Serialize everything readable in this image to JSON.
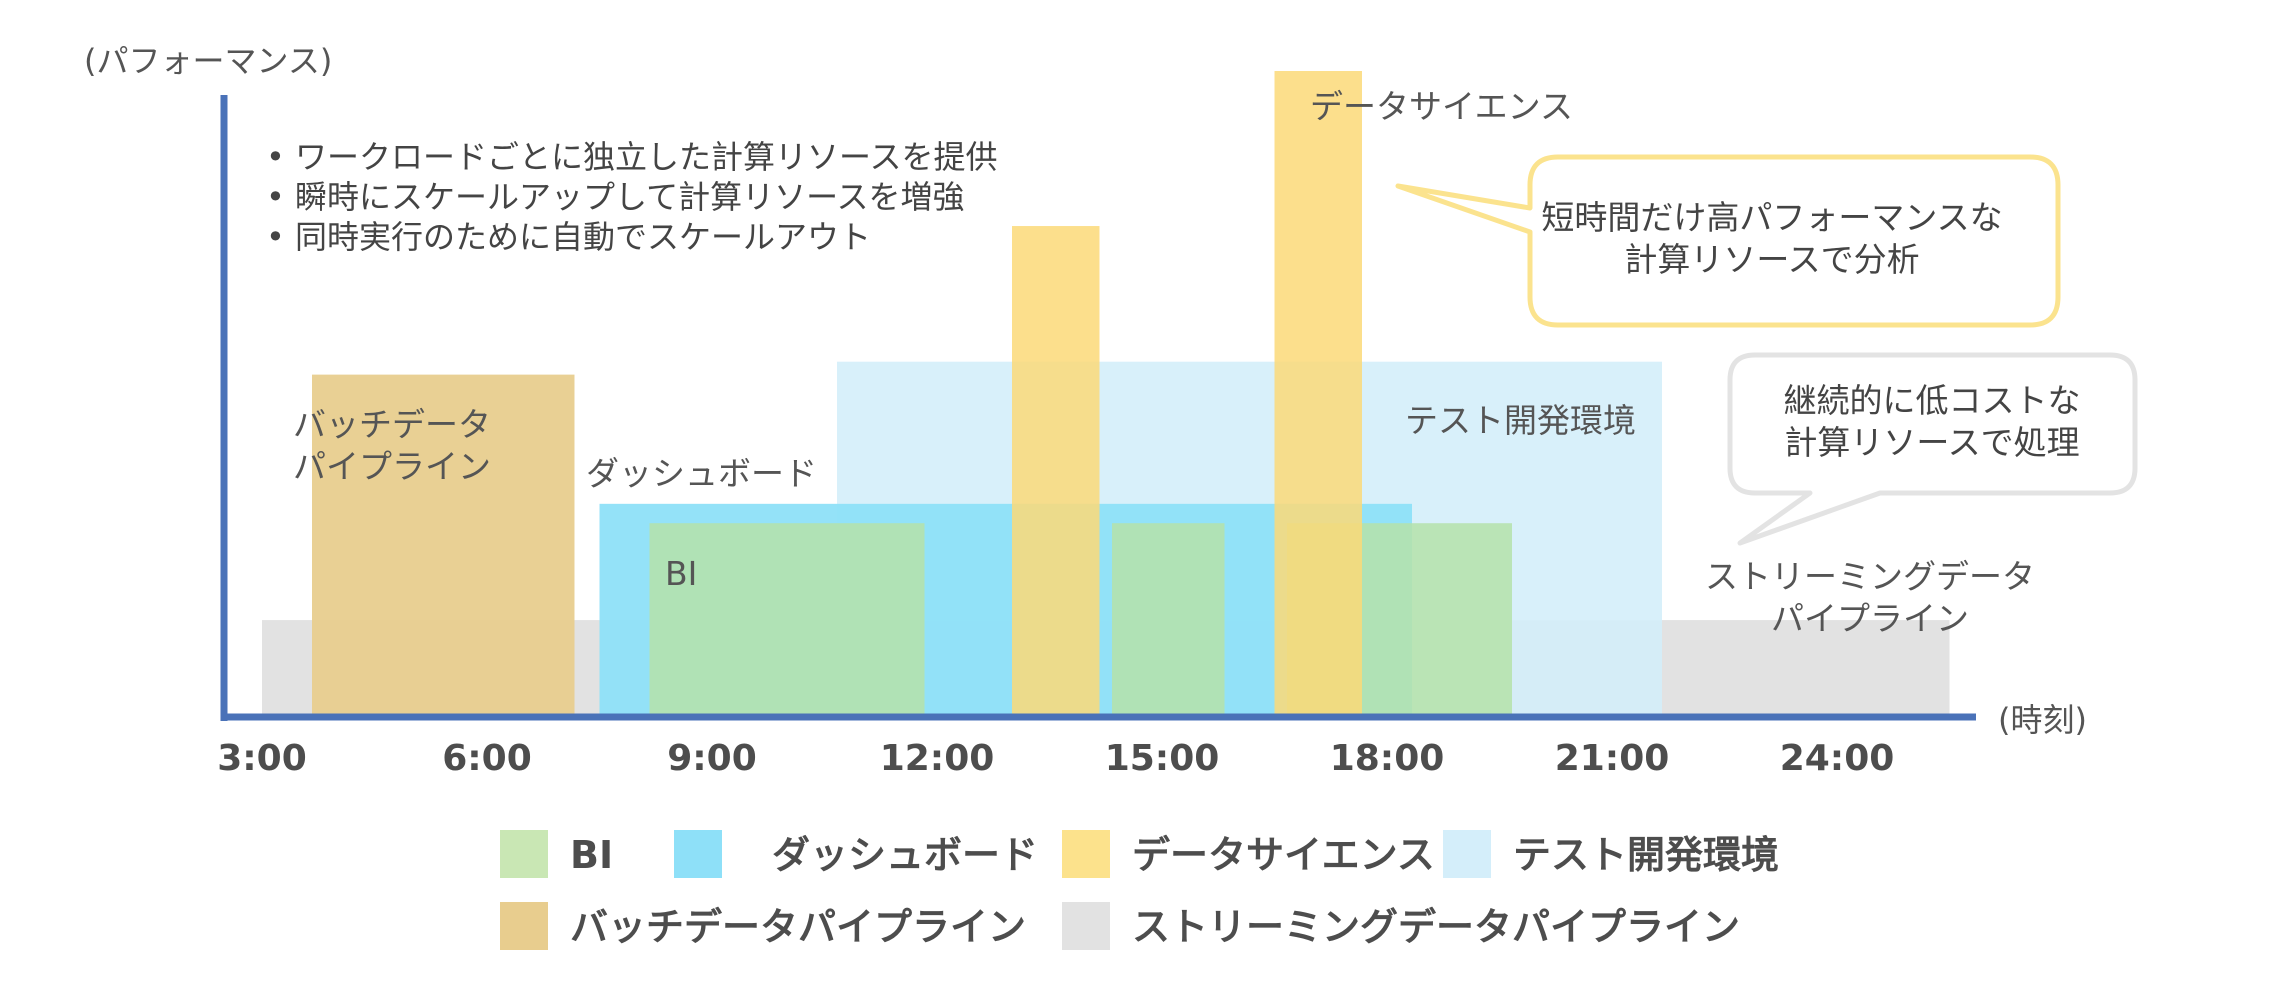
{
  "chart_data": {
    "type": "area",
    "ylabel": "(パフォーマンス)",
    "xlabel": "(時刻)",
    "x_ticks": [
      "3:00",
      "6:00",
      "9:00",
      "12:00",
      "15:00",
      "18:00",
      "21:00",
      "24:00"
    ],
    "features": [
      "• ワークロードごとに独立した計算リソースを提供",
      "• 瞬時にスケールアップして計算リソースを増強",
      "• 同時実行のために自動でスケールアウト"
    ],
    "callouts": [
      {
        "lines": [
          "短時間だけ高パフォーマンスな",
          "計算リソースで分析"
        ],
        "color": "#fbe38e"
      },
      {
        "lines": [
          "継続的に低コストな",
          "計算リソースで処理"
        ],
        "color": "#e3e3e3"
      }
    ],
    "series": [
      {
        "name": "ストリーミングデータパイプライン",
        "color": "#e2e2e2",
        "label_lines": [
          "ストリーミングデータ",
          "パイプライン"
        ],
        "segments": [
          {
            "start": "3:00",
            "end": "25:30",
            "level": 15
          }
        ]
      },
      {
        "name": "テスト開発環境",
        "color": "#d4eefa",
        "label_lines": [
          "テスト開発環境"
        ],
        "segments": [
          {
            "start": "10:40",
            "end": "21:40",
            "level": 55
          }
        ]
      },
      {
        "name": "ダッシュボード",
        "color": "#8ee0f8",
        "label_lines": [
          "ダッシュボード"
        ],
        "segments": [
          {
            "start": "7:30",
            "end": "18:20",
            "level": 33
          }
        ]
      },
      {
        "name": "BI",
        "color": "#b5e2a9",
        "label_lines": [
          "BI"
        ],
        "segments": [
          {
            "start": "8:10",
            "end": "11:50",
            "level": 30
          },
          {
            "start": "14:20",
            "end": "15:50",
            "level": 30
          },
          {
            "start": "16:40",
            "end": "19:40",
            "level": 30
          }
        ]
      },
      {
        "name": "バッチデータパイプライン",
        "color": "#e8cd8e",
        "label_lines": [
          "バッチデータ",
          "パイプライン"
        ],
        "segments": [
          {
            "start": "3:40",
            "end": "7:10",
            "level": 53
          }
        ]
      },
      {
        "name": "データサイエンス",
        "color": "#fbd978",
        "label_lines": [
          "データサイエンス"
        ],
        "segments": [
          {
            "start": "13:00",
            "end": "14:10",
            "level": 76
          },
          {
            "start": "16:30",
            "end": "17:40",
            "level": 100
          }
        ]
      }
    ],
    "legend": [
      {
        "label": "BI",
        "color": "#c9e7b4"
      },
      {
        "label": "ダッシュボード",
        "color": "#8ee0f8"
      },
      {
        "label": "データサイエンス",
        "color": "#fce28c"
      },
      {
        "label": "テスト開発環境",
        "color": "#d4eefa"
      },
      {
        "label": "バッチデータパイプライン",
        "color": "#e8cd8e"
      },
      {
        "label": "ストリーミングデータパイプライン",
        "color": "#e2e2e2"
      }
    ],
    "axis_color": "#4a72b8",
    "text_color": "#555555"
  }
}
